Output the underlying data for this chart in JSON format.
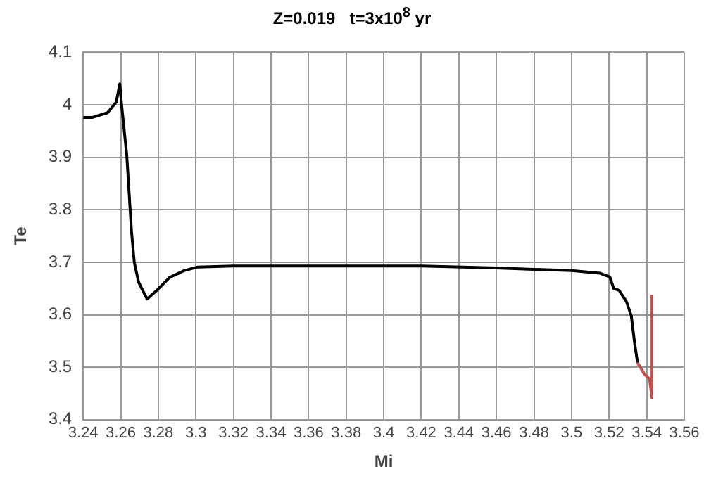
{
  "chart_data": {
    "type": "line",
    "title": "Z=0.019   t=3x10$^{8}$ yr",
    "xlabel": "Mi",
    "ylabel": "Te",
    "xlim": [
      3.24,
      3.56
    ],
    "xticks": [
      3.24,
      3.26,
      3.28,
      3.3,
      3.32,
      3.34,
      3.36,
      3.38,
      3.4,
      3.42,
      3.44,
      3.46,
      3.48,
      3.5,
      3.52,
      3.54,
      3.56
    ],
    "ylim": [
      3.4,
      4.1
    ],
    "yticks": [
      3.4,
      3.5,
      3.6,
      3.7,
      3.8,
      3.9,
      4,
      4.1
    ],
    "grid": true,
    "legend": false,
    "marker": "none",
    "line_style": "solid",
    "series": [
      {
        "color": "#000000",
        "x": [
          3.24,
          3.245,
          3.253,
          3.2576,
          3.2595,
          3.2605,
          3.2632,
          3.2657,
          3.2672,
          3.2695,
          3.274,
          3.2797,
          3.286,
          3.2937,
          3.301,
          3.32,
          3.36,
          3.42,
          3.46,
          3.5,
          3.5152,
          3.5204,
          3.5224,
          3.5254,
          3.5292,
          3.5318,
          3.5336,
          3.5351
        ],
        "values": [
          3.976,
          3.976,
          3.985,
          4.005,
          4.04,
          3.998,
          3.904,
          3.76,
          3.7,
          3.662,
          3.63,
          3.648,
          3.671,
          3.684,
          3.691,
          3.693,
          3.693,
          3.693,
          3.689,
          3.684,
          3.679,
          3.672,
          3.65,
          3.646,
          3.625,
          3.598,
          3.545,
          3.509
        ]
      },
      {
        "color": "#c0504d",
        "x": [
          3.5351,
          3.5387,
          3.5415,
          3.5428,
          3.5428
        ],
        "values": [
          3.509,
          3.487,
          3.478,
          3.441,
          3.638
        ]
      }
    ]
  }
}
